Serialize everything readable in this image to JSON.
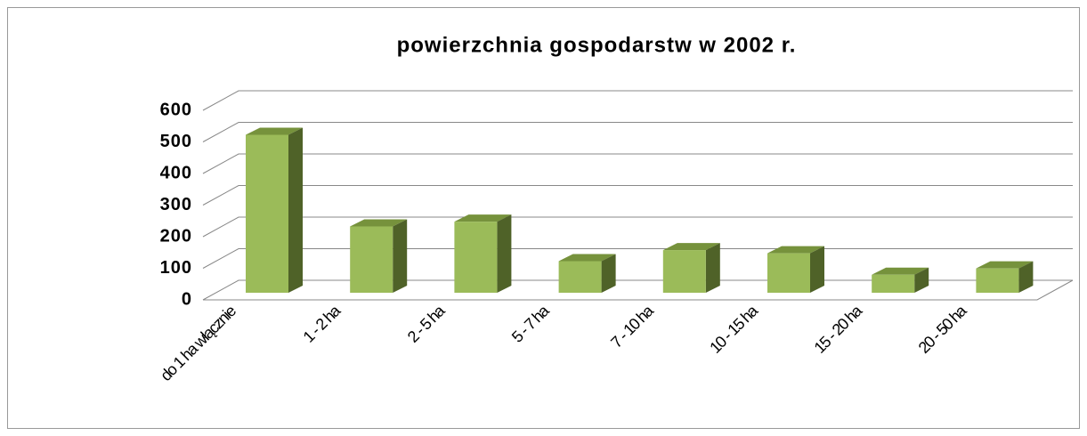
{
  "chart_data": {
    "type": "bar3d",
    "title": "powierzchnia gospodarstw w 2002 r.",
    "categories": [
      "do 1 ha włącznie",
      "1 - 2 ha",
      "2 - 5 ha",
      "5 - 7 ha",
      "7 - 10 ha",
      "10 - 15 ha",
      "15 - 20 ha",
      "20 - 50 ha"
    ],
    "values": [
      500,
      210,
      225,
      100,
      135,
      125,
      57,
      77
    ],
    "color": "#9bbb59",
    "ylim": [
      0,
      600
    ],
    "yticks": [
      0,
      100,
      200,
      300,
      400,
      500,
      600
    ],
    "grid": true
  }
}
